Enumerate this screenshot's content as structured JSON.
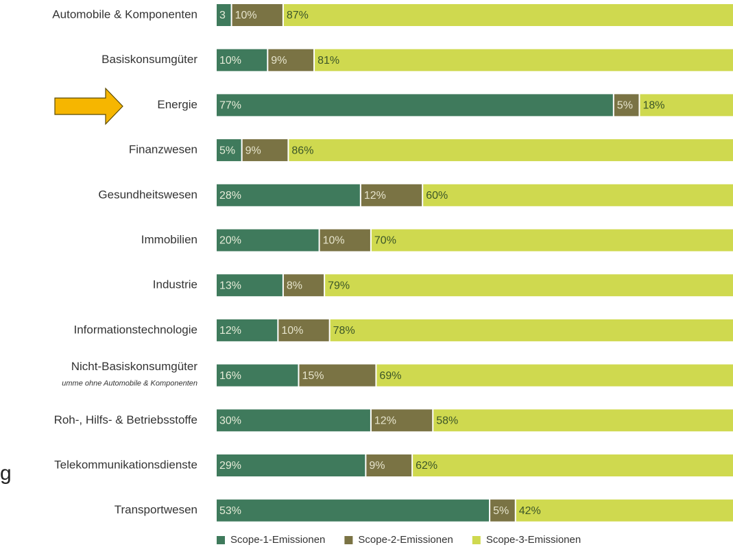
{
  "chart_data": {
    "type": "stacked-bar-horizontal",
    "categories": [
      "Automobile & Komponenten",
      "Basiskonsumgüter",
      "Energie",
      "Finanzwesen",
      "Gesundheitswesen",
      "Immobilien",
      "Industrie",
      "Informationstechnologie",
      "Nicht-Basiskonsumgüter",
      "Roh-, Hilfs- & Betriebsstoffe",
      "Telekommunikationsdienste",
      "Transportwesen"
    ],
    "category_notes": [
      null,
      null,
      null,
      null,
      null,
      null,
      null,
      null,
      "umme ohne Automobile & Komponenten",
      null,
      null,
      null
    ],
    "annotation": "g",
    "xlim": [
      0,
      100
    ],
    "series": [
      {
        "name": "Scope-1-Emissionen",
        "color": "#3f7a5c",
        "values": [
          3,
          10,
          77,
          5,
          28,
          20,
          13,
          12,
          16,
          30,
          29,
          53
        ],
        "value_labels": [
          "3",
          "10%",
          "77%",
          "5%",
          "28%",
          "20%",
          "13%",
          "12%",
          "16%",
          "30%",
          "29%",
          "53%"
        ]
      },
      {
        "name": "Scope-2-Emissionen",
        "color": "#7a7344",
        "values": [
          10,
          9,
          5,
          9,
          12,
          10,
          8,
          10,
          15,
          12,
          9,
          5
        ],
        "value_labels": [
          "10%",
          "9%",
          "5%",
          "9%",
          "12%",
          "10%",
          "8%",
          "10%",
          "15%",
          "12%",
          "9%",
          "5%"
        ]
      },
      {
        "name": "Scope-3-Emissionen",
        "color": "#cfd94f",
        "values": [
          87,
          81,
          18,
          86,
          60,
          70,
          79,
          78,
          69,
          58,
          62,
          42
        ],
        "value_labels": [
          "87%",
          "81%",
          "18%",
          "86%",
          "60%",
          "70%",
          "79%",
          "78%",
          "69%",
          "58%",
          "62%",
          "42%"
        ]
      }
    ],
    "legend": "bottom"
  }
}
